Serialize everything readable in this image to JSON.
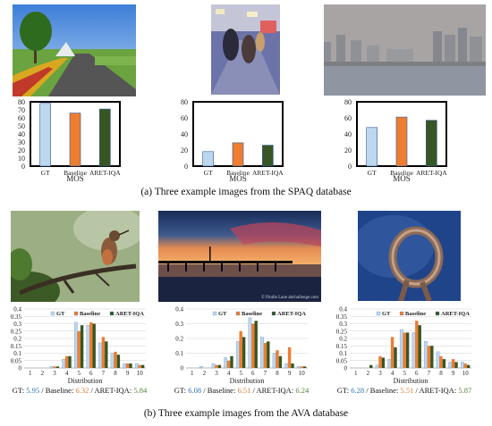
{
  "spaq": {
    "caption": "(a) Three example images from the SPAQ database",
    "x_label": "MOS",
    "categories": [
      "GT",
      "Baseline",
      "ARET-IQA"
    ],
    "colors": [
      "#bdd7ee",
      "#ed7d31",
      "#375623"
    ]
  },
  "ava": {
    "caption": "(b) Three example images from the AVA database",
    "x_label": "Distribution",
    "legend": [
      "GT",
      "Baseline",
      "ARET-IQA"
    ],
    "colors": [
      "#bdd7ee",
      "#ed7d31",
      "#375623"
    ],
    "watermark": "© Pindle Lane abchallenge.com"
  },
  "scores": [
    {
      "gt_label": "GT: ",
      "gt": "5.95",
      "bl_label": " / Baseline: ",
      "bl": "6.32",
      "ar_label": " / ARET-IQA: ",
      "ar": "5.84"
    },
    {
      "gt_label": "GT: ",
      "gt": "6.08",
      "bl_label": " / Baseline: ",
      "bl": "6.51",
      "ar_label": " / ARET-IQA: ",
      "ar": "6.24"
    },
    {
      "gt_label": "GT: ",
      "gt": "6.28",
      "bl_label": " / Baseline: ",
      "bl": "5.51",
      "ar_label": " / ARET-IQA: ",
      "ar": "5.87"
    }
  ],
  "chart_data": [
    {
      "type": "bar",
      "categories": [
        "GT",
        "Baseline",
        "ARET-IQA"
      ],
      "values": [
        78,
        66,
        71
      ],
      "xlabel": "MOS",
      "ylim": [
        0,
        80
      ],
      "yticks": [
        0,
        10,
        20,
        30,
        40,
        50,
        60,
        70,
        80
      ]
    },
    {
      "type": "bar",
      "categories": [
        "GT",
        "Baseline",
        "ARET-IQA"
      ],
      "values": [
        18,
        29,
        26
      ],
      "xlabel": "MOS",
      "ylim": [
        0,
        80
      ],
      "yticks": [
        0,
        20,
        40,
        60,
        80
      ]
    },
    {
      "type": "bar",
      "categories": [
        "GT",
        "Baseline",
        "ARET-IQA"
      ],
      "values": [
        48,
        61,
        57
      ],
      "xlabel": "MOS",
      "ylim": [
        0,
        80
      ],
      "yticks": [
        0,
        20,
        40,
        60,
        80
      ]
    },
    {
      "type": "bar",
      "categories": [
        "1",
        "2",
        "3",
        "4",
        "5",
        "6",
        "7",
        "8",
        "9",
        "10"
      ],
      "xlabel": "Distribution",
      "ylim": [
        0,
        0.4
      ],
      "yticks": [
        0,
        0.05,
        0.1,
        0.15,
        0.2,
        0.25,
        0.3,
        0.35,
        0.4
      ],
      "series": [
        {
          "name": "GT",
          "values": [
            0,
            0,
            0.01,
            0.06,
            0.31,
            0.29,
            0.17,
            0.1,
            0.03,
            0.03
          ]
        },
        {
          "name": "Baseline",
          "values": [
            0,
            0,
            0.01,
            0.08,
            0.25,
            0.31,
            0.21,
            0.11,
            0.03,
            0.02
          ]
        },
        {
          "name": "ARET-IQA",
          "values": [
            0,
            0,
            0.01,
            0.08,
            0.29,
            0.3,
            0.18,
            0.09,
            0.03,
            0.02
          ]
        }
      ]
    },
    {
      "type": "bar",
      "categories": [
        "1",
        "2",
        "3",
        "4",
        "5",
        "6",
        "7",
        "8",
        "9",
        "10"
      ],
      "xlabel": "Distribution",
      "ylim": [
        0,
        0.4
      ],
      "yticks": [
        0,
        0.1,
        0.2,
        0.3,
        0.4
      ],
      "series": [
        {
          "name": "GT",
          "values": [
            0,
            0.01,
            0.03,
            0.07,
            0.18,
            0.34,
            0.21,
            0.1,
            0.03,
            0.01
          ]
        },
        {
          "name": "Baseline",
          "values": [
            0,
            0,
            0.02,
            0.05,
            0.25,
            0.3,
            0.17,
            0.12,
            0.14,
            0.01
          ]
        },
        {
          "name": "ARET-IQA",
          "values": [
            0,
            0,
            0.02,
            0.08,
            0.21,
            0.32,
            0.18,
            0.08,
            0.03,
            0.01
          ]
        }
      ]
    },
    {
      "type": "bar",
      "categories": [
        "1",
        "2",
        "3",
        "4",
        "5",
        "6",
        "7",
        "8",
        "9",
        "10"
      ],
      "xlabel": "Distribution",
      "ylim": [
        0,
        0.4
      ],
      "yticks": [
        0,
        0.05,
        0.1,
        0.15,
        0.2,
        0.25,
        0.3,
        0.35,
        0.4
      ],
      "series": [
        {
          "name": "GT",
          "values": [
            0,
            0,
            0.02,
            0.06,
            0.26,
            0.24,
            0.18,
            0.11,
            0.04,
            0.04
          ]
        },
        {
          "name": "Baseline",
          "values": [
            0,
            0,
            0.08,
            0.21,
            0.24,
            0.32,
            0.15,
            0.08,
            0.06,
            0.03
          ]
        },
        {
          "name": "ARET-IQA",
          "values": [
            0,
            0.02,
            0.07,
            0.14,
            0.24,
            0.29,
            0.15,
            0.06,
            0.04,
            0.02
          ]
        }
      ]
    }
  ]
}
